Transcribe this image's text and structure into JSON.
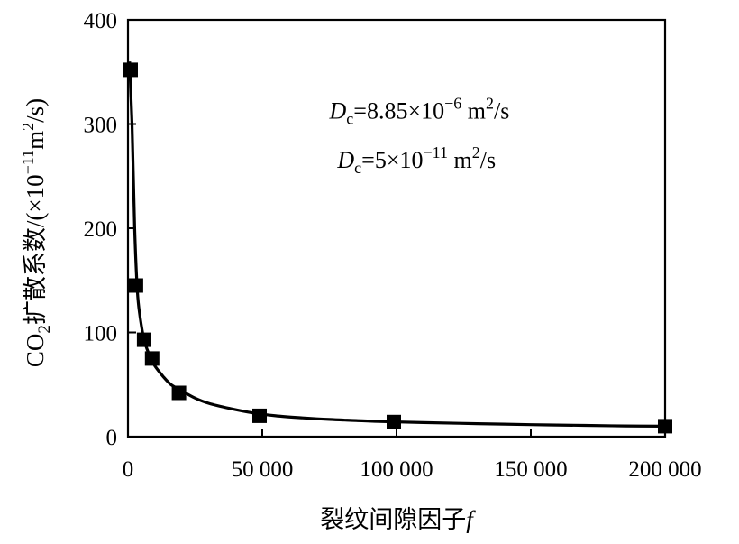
{
  "chart_data": {
    "type": "scatter",
    "title": "",
    "xlabel": "裂纹间隙因子f",
    "xlabel_main": "裂纹间隙因子",
    "xlabel_var": "f",
    "ylabel": "CO2扩散系数/(×10−11m2/s)",
    "ylabel_parts": {
      "co": "CO",
      "sub": "2",
      "cn": "扩散系数",
      "open": "/(×10",
      "exp": "−11",
      "m": "m",
      "m_exp": "2",
      "close": "/s)"
    },
    "xlim": [
      0,
      200000
    ],
    "ylim": [
      0,
      400
    ],
    "x_ticks": [
      0,
      50000,
      100000,
      150000,
      200000
    ],
    "x_tick_labels": [
      "0",
      "50 000",
      "100 000",
      "150 000",
      "200 000"
    ],
    "y_ticks": [
      0,
      100,
      200,
      300,
      400
    ],
    "y_tick_labels": [
      "0",
      "100",
      "200",
      "300",
      "400"
    ],
    "grid": false,
    "marker": "square",
    "color": "#000000",
    "points": [
      {
        "x": 1000,
        "y": 352
      },
      {
        "x": 3000,
        "y": 145
      },
      {
        "x": 6000,
        "y": 93
      },
      {
        "x": 9000,
        "y": 75
      },
      {
        "x": 19000,
        "y": 42
      },
      {
        "x": 49000,
        "y": 20
      },
      {
        "x": 99000,
        "y": 14
      },
      {
        "x": 200000,
        "y": 10
      }
    ],
    "fit_curve": [
      [
        600,
        360
      ],
      [
        1500,
        300
      ],
      [
        2500,
        200
      ],
      [
        3500,
        140
      ],
      [
        4500,
        115
      ],
      [
        6000,
        93
      ],
      [
        8000,
        78
      ],
      [
        10000,
        68
      ],
      [
        13000,
        58
      ],
      [
        16000,
        50
      ],
      [
        20000,
        44
      ],
      [
        25000,
        37
      ],
      [
        30000,
        32
      ],
      [
        38000,
        27
      ],
      [
        46000,
        23
      ],
      [
        55000,
        20
      ],
      [
        65000,
        18
      ],
      [
        75000,
        16.5
      ],
      [
        85000,
        15.5
      ],
      [
        95000,
        14.5
      ],
      [
        110000,
        13.5
      ],
      [
        130000,
        12.5
      ],
      [
        150000,
        11.5
      ],
      [
        170000,
        10.8
      ],
      [
        185000,
        10.3
      ],
      [
        200000,
        10
      ]
    ],
    "annotations": [
      {
        "label": "Dc=8.85×10−6 m2/s",
        "D": "D",
        "sub": "c",
        "eq": "=8.85×10",
        "exp": "−6",
        "unit": " m",
        "unit_exp": "2",
        "tail": "/s",
        "pos": {
          "x": 75000,
          "y": 305
        }
      },
      {
        "label": "Dc=5×10−11 m2/s",
        "D": "D",
        "sub": "c",
        "eq": "=5×10",
        "exp": "−11",
        "unit": " m",
        "unit_exp": "2",
        "tail": "/s",
        "pos": {
          "x": 78000,
          "y": 258
        }
      }
    ]
  }
}
